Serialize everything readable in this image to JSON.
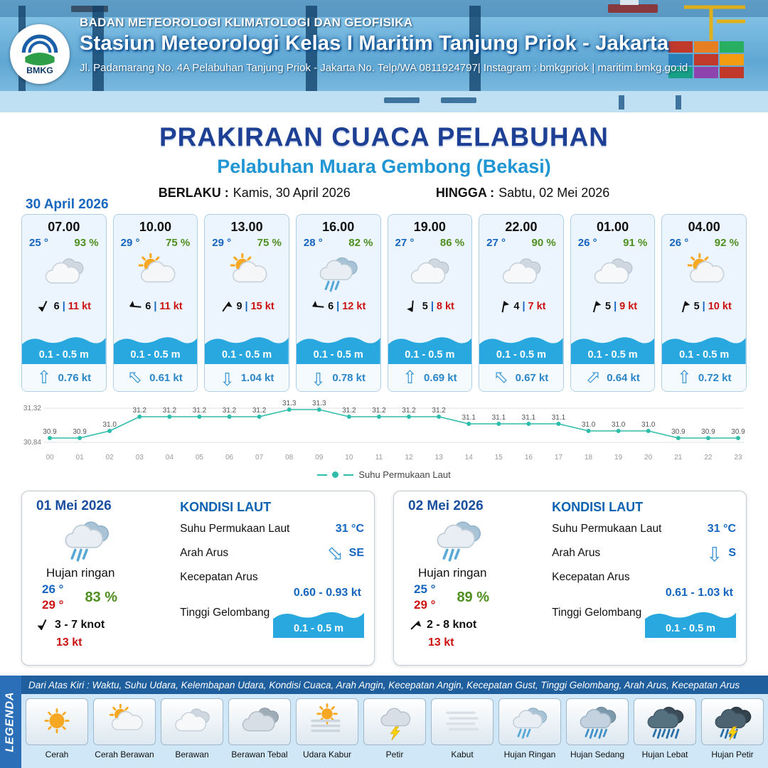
{
  "colors": {
    "header_blue": "#1a5fa8",
    "title_blue": "#1d3f94",
    "subtitle_blue": "#2095d3",
    "temp_blue": "#1565c0",
    "humidity_green": "#4e8f1f",
    "gust_red": "#cc1111",
    "wave_blue": "#29a8e0",
    "current_blue": "#2b86c8",
    "chart_teal": "#2dbdaa"
  },
  "icons": {
    "current_arrow": "⇧"
  },
  "header": {
    "logo_text": "BMKG",
    "agency": "BADAN METEOROLOGI KLIMATOLOGI DAN GEOFISIKA",
    "station": "Stasiun Meteorologi Kelas I Maritim Tanjung Priok - Jakarta",
    "address": "Jl. Padamarang No. 4A Pelabuhan Tanjung Priok - Jakarta No. Telp/WA 0811924797| Instagram : bmkgpriok | maritim.bmkg.go.id"
  },
  "title": {
    "main": "PRAKIRAAN CUACA PELABUHAN",
    "subtitle": "Pelabuhan Muara Gembong (Bekasi)",
    "valid_label": "BERLAKU :",
    "valid_value": "Kamis, 30 April 2026",
    "until_label": "HINGGA :",
    "until_value": "Sabtu, 02 Mei 2026"
  },
  "forecast": {
    "date": "30 April 2026",
    "sep": "|",
    "cards": [
      {
        "time": "07.00",
        "temp": "25 °",
        "humidity": "93 %",
        "icon": "berawan",
        "wind_dir_deg": 205,
        "wind_val": "6",
        "gust": "11 kt",
        "wave": "0.1 - 0.5 m",
        "current_dir_deg": 0,
        "current": "0.76 kt"
      },
      {
        "time": "10.00",
        "temp": "29 °",
        "humidity": "75 %",
        "icon": "cerah-berawan",
        "wind_dir_deg": 275,
        "wind_val": "6",
        "gust": "11 kt",
        "wave": "0.1 - 0.5 m",
        "current_dir_deg": -45,
        "current": "0.61 kt"
      },
      {
        "time": "13.00",
        "temp": "29 °",
        "humidity": "75 %",
        "icon": "cerah-berawan",
        "wind_dir_deg": 35,
        "wind_val": "9",
        "gust": "15 kt",
        "wave": "0.1 - 0.5 m",
        "current_dir_deg": 180,
        "current": "1.04 kt"
      },
      {
        "time": "16.00",
        "temp": "28 °",
        "humidity": "82 %",
        "icon": "hujan-ringan",
        "wind_dir_deg": 275,
        "wind_val": "6",
        "gust": "12 kt",
        "wave": "0.1 - 0.5 m",
        "current_dir_deg": 180,
        "current": "0.78 kt"
      },
      {
        "time": "19.00",
        "temp": "27 °",
        "humidity": "86 %",
        "icon": "berawan",
        "wind_dir_deg": 185,
        "wind_val": "5",
        "gust": "8 kt",
        "wave": "0.1 - 0.5 m",
        "current_dir_deg": 0,
        "current": "0.69 kt"
      },
      {
        "time": "22.00",
        "temp": "27 °",
        "humidity": "90 %",
        "icon": "berawan",
        "wind_dir_deg": 10,
        "wind_val": "4",
        "gust": "7 kt",
        "wave": "0.1 - 0.5 m",
        "current_dir_deg": -45,
        "current": "0.67 kt"
      },
      {
        "time": "01.00",
        "temp": "26 °",
        "humidity": "91 %",
        "icon": "berawan",
        "wind_dir_deg": 15,
        "wind_val": "5",
        "gust": "9 kt",
        "wave": "0.1 - 0.5 m",
        "current_dir_deg": 45,
        "current": "0.64 kt"
      },
      {
        "time": "04.00",
        "temp": "26 °",
        "humidity": "92 %",
        "icon": "cerah-berawan",
        "wind_dir_deg": 15,
        "wind_val": "5",
        "gust": "10 kt",
        "wave": "0.1 - 0.5 m",
        "current_dir_deg": 0,
        "current": "0.72 kt"
      }
    ]
  },
  "chart_data": {
    "type": "line",
    "title": "Suhu Permukaan Laut",
    "series_name": "Suhu Permukaan Laut",
    "x": [
      "00",
      "01",
      "02",
      "03",
      "04",
      "05",
      "06",
      "07",
      "08",
      "09",
      "10",
      "11",
      "12",
      "13",
      "14",
      "15",
      "16",
      "17",
      "18",
      "19",
      "20",
      "21",
      "22",
      "23"
    ],
    "values": [
      30.9,
      30.9,
      31.0,
      31.2,
      31.2,
      31.2,
      31.2,
      31.2,
      31.3,
      31.3,
      31.2,
      31.2,
      31.2,
      31.2,
      31.1,
      31.1,
      31.1,
      31.1,
      31.0,
      31.0,
      31.0,
      30.9,
      30.9,
      30.9
    ],
    "ylim": [
      30.84,
      31.32
    ],
    "line_color": "#2dbdaa",
    "grid": true,
    "legend_position": "bottom"
  },
  "daily": [
    {
      "date": "01 Mei 2026",
      "icon": "hujan-ringan",
      "condition": "Hujan ringan",
      "temp_min": "26 °",
      "temp_max": "29 °",
      "humidity": "83 %",
      "wind_dir_deg": 205,
      "wind_range": "3  - 7 knot",
      "gust": "13 kt",
      "sea": {
        "heading": "KONDISI LAUT",
        "sst_label": "Suhu Permukaan Laut",
        "sst_value": "31 °C",
        "dir_label": "Arah Arus",
        "dir": "SE",
        "dir_deg": 135,
        "speed_label": "Kecepatan Arus",
        "speed": "0.60  - 0.93 kt",
        "wave_label": "Tinggi Gelombang",
        "wave_value": "0.1 - 0.5 m"
      }
    },
    {
      "date": "02 Mei 2026",
      "icon": "hujan-ringan",
      "condition": "Hujan ringan",
      "temp_min": "25 °",
      "temp_max": "29 °",
      "humidity": "89 %",
      "wind_dir_deg": 45,
      "wind_range": "2  - 8 knot",
      "gust": "13 kt",
      "sea": {
        "heading": "KONDISI LAUT",
        "sst_label": "Suhu Permukaan Laut",
        "sst_value": "31 °C",
        "dir_label": "Arah Arus",
        "dir": "S",
        "dir_deg": 180,
        "speed_label": "Kecepatan Arus",
        "speed": "0.61 - 1.03 kt",
        "wave_label": "Tinggi Gelombang",
        "wave_value": "0.1 - 0.5 m"
      }
    }
  ],
  "legend": {
    "title": "LEGENDA",
    "description": "Dari Atas Kiri : Waktu, Suhu Udara, Kelembapan Udara, Kondisi Cuaca, Arah Angin, Kecepatan Angin, Kecepatan Gust, Tinggi Gelombang, Arah Arus, Kecepatan Arus",
    "items": [
      {
        "label": "Cerah",
        "icon": "cerah"
      },
      {
        "label": "Cerah Berawan",
        "icon": "cerah-berawan"
      },
      {
        "label": "Berawan",
        "icon": "berawan"
      },
      {
        "label": "Berawan Tebal",
        "icon": "berawan-tebal"
      },
      {
        "label": "Udara Kabur",
        "icon": "udara-kabur"
      },
      {
        "label": "Petir",
        "icon": "petir"
      },
      {
        "label": "Kabut",
        "icon": "kabut"
      },
      {
        "label": "Hujan Ringan",
        "icon": "hujan-ringan"
      },
      {
        "label": "Hujan Sedang",
        "icon": "hujan-sedang"
      },
      {
        "label": "Hujan Lebat",
        "icon": "hujan-lebat"
      },
      {
        "label": "Hujan Petir",
        "icon": "hujan-petir"
      }
    ]
  }
}
